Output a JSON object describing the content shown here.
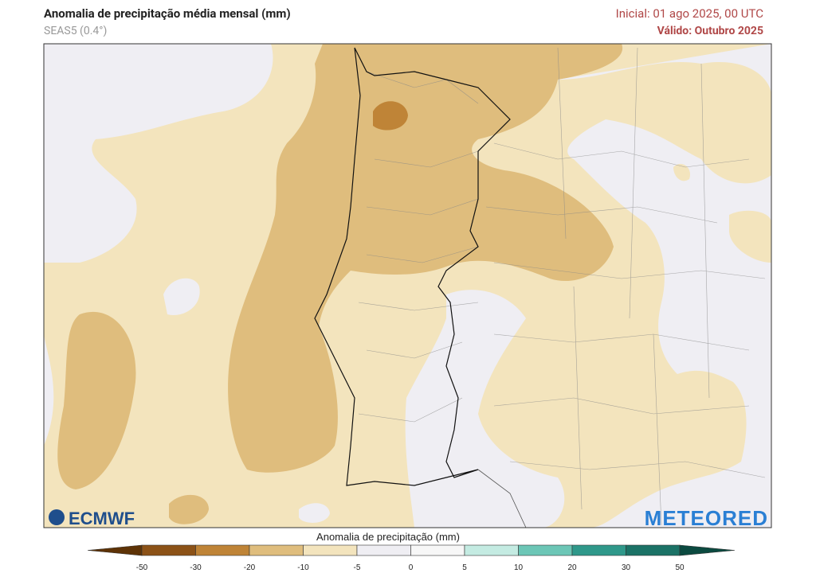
{
  "header": {
    "title": "Anomalia de precipitação média mensal (mm)",
    "subtitle": "SEAS5 (0.4°)",
    "init": "Inicial: 01 ago 2025, 00 UTC",
    "valid": "Válido: Outubro 2025"
  },
  "logos": {
    "left": "ECMWF",
    "right": "METEORED"
  },
  "colorbar": {
    "label": "Anomalia de precipitação (mm)",
    "ticks": [
      -50,
      -30,
      -20,
      -10,
      -5,
      0,
      5,
      10,
      20,
      30,
      50
    ],
    "colors": [
      "#5e3306",
      "#8c5217",
      "#bf8437",
      "#dfbd7d",
      "#f3e4bd",
      "#efeef3",
      "#f7f7f7",
      "#c4ebe2",
      "#6cc6b6",
      "#2f988a",
      "#1b7266",
      "#0b4a40"
    ]
  }
}
